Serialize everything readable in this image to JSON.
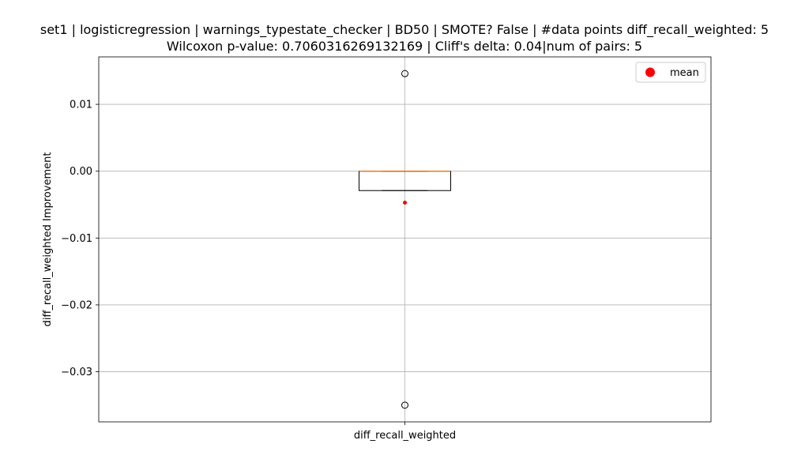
{
  "chart_data": {
    "type": "box",
    "title_line1": "set1 | logisticregression | warnings_typestate_checker | BD50 | SMOTE? False | #data points diff_recall_weighted: 5",
    "title_line2": "Wilcoxon p-value: 0.7060316269132169 | Cliff's delta: 0.04|num of pairs: 5",
    "xlabel": "",
    "ylabel": "diff_recall_weighted Improvement",
    "categories": [
      "diff_recall_weighted"
    ],
    "ylim": [
      -0.0375,
      0.0171
    ],
    "yticks": [
      0.01,
      0.0,
      -0.01,
      -0.02,
      -0.03
    ],
    "ytick_labels": [
      "0.01",
      "0.00",
      "−0.01",
      "−0.02",
      "−0.03"
    ],
    "grid": true,
    "legend": {
      "position": "top-right",
      "entries": [
        {
          "label": "mean",
          "color": "#ff0000"
        }
      ]
    },
    "box": {
      "q1": -0.0029,
      "median": 0.0,
      "q3": 0.0,
      "whisker_low": -0.0029,
      "whisker_high": 0.0,
      "fliers": [
        0.0146,
        -0.035
      ],
      "mean": -0.0047
    },
    "colors": {
      "box": "#000000",
      "median": "#ff7f0e",
      "mean": "#ff0000",
      "grid": "#b0b0b0"
    }
  }
}
